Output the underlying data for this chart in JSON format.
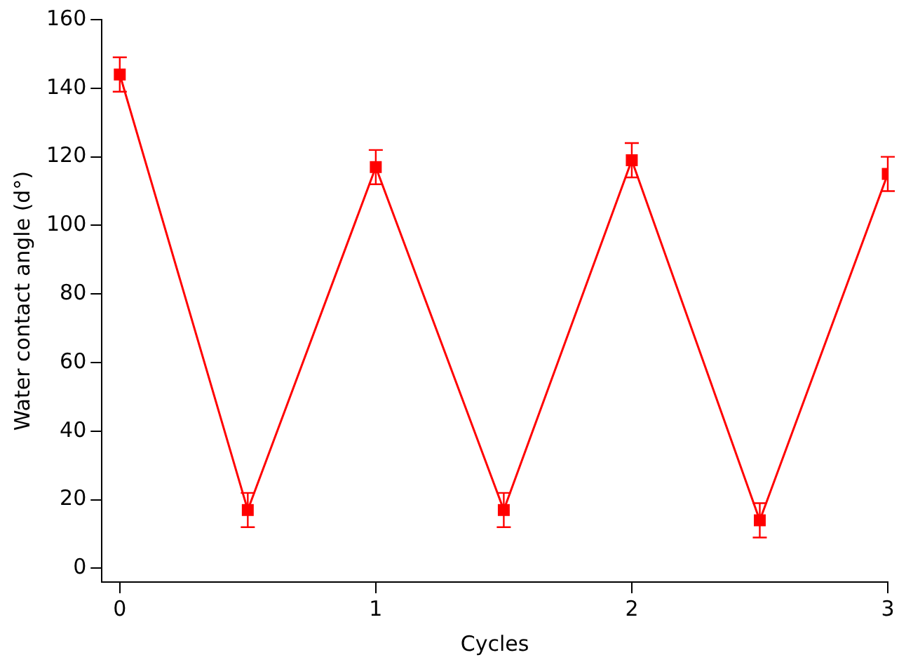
{
  "chart_data": {
    "type": "line",
    "xlabel": "Cycles",
    "ylabel": "Water contact angle (d°)",
    "x": [
      0,
      0.5,
      1,
      1.5,
      2,
      2.5,
      3
    ],
    "series": [
      {
        "color": "#ff0000",
        "values": [
          144,
          17,
          117,
          17,
          119,
          14,
          115
        ],
        "errors": [
          5,
          5,
          5,
          5,
          5,
          5,
          5
        ]
      }
    ],
    "xlim": [
      -0.07,
      3
    ],
    "xticks": [
      0,
      1,
      2,
      3
    ],
    "ylim": [
      -4,
      160
    ],
    "yticks": [
      0,
      20,
      40,
      60,
      80,
      100,
      120,
      140,
      160
    ],
    "grid": false,
    "legend": false,
    "marker": "square",
    "line_style": "solid"
  }
}
